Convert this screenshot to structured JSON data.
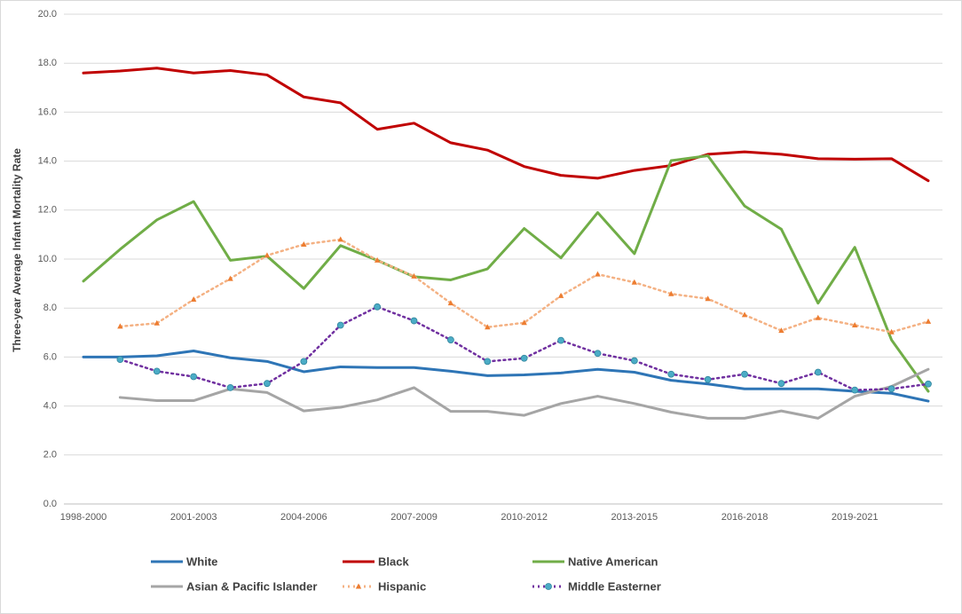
{
  "chart_data": {
    "type": "line",
    "y_label": "Three-year Average Infant Mortality Rate",
    "categories": [
      "1998-2000",
      null,
      null,
      "2001-2003",
      null,
      null,
      "2004-2006",
      null,
      null,
      "2007-2009",
      null,
      null,
      "2010-2012",
      null,
      null,
      "2013-2015",
      null,
      null,
      "2016-2018",
      null,
      null,
      "2019-2021",
      null,
      null
    ],
    "ylim": [
      0,
      20
    ],
    "yticks": [
      {
        "value": 0,
        "label": "0.0"
      },
      {
        "value": 2,
        "label": "2.0"
      },
      {
        "value": 4,
        "label": "4.0"
      },
      {
        "value": 6,
        "label": "6.0"
      },
      {
        "value": 8,
        "label": "8.0"
      },
      {
        "value": 10,
        "label": "10.0"
      },
      {
        "value": 12,
        "label": "12.0"
      },
      {
        "value": 14,
        "label": "14.0"
      },
      {
        "value": 16,
        "label": "16.0"
      },
      {
        "value": 18,
        "label": "18.0"
      },
      {
        "value": 20,
        "label": "20.0"
      }
    ],
    "grid": true,
    "legend": "bottom",
    "series": [
      {
        "name": "White",
        "color": "#2e75b6",
        "style": "solid",
        "values": [
          6.0,
          6.0,
          6.05,
          6.25,
          5.97,
          5.82,
          5.4,
          5.6,
          5.57,
          5.57,
          5.42,
          5.24,
          5.27,
          5.35,
          5.5,
          5.38,
          5.05,
          4.9,
          4.7,
          4.7,
          4.7,
          4.6,
          4.52,
          4.2
        ]
      },
      {
        "name": "Black",
        "color": "#c00000",
        "style": "solid",
        "values": [
          17.6,
          17.68,
          17.8,
          17.6,
          17.7,
          17.52,
          16.62,
          16.38,
          15.3,
          15.55,
          14.75,
          14.45,
          13.78,
          13.42,
          13.3,
          13.62,
          13.82,
          14.28,
          14.38,
          14.28,
          14.1,
          14.08,
          14.1,
          13.2
        ]
      },
      {
        "name": "Native American",
        "color": "#70ad47",
        "style": "solid",
        "values": [
          9.1,
          10.4,
          11.6,
          12.35,
          9.95,
          10.12,
          8.8,
          10.55,
          9.95,
          9.28,
          9.15,
          9.6,
          11.25,
          10.05,
          11.9,
          10.22,
          14.02,
          14.22,
          12.17,
          11.22,
          8.2,
          10.48,
          6.7,
          4.6
        ]
      },
      {
        "name": "Asian & Pacific Islander",
        "color": "#a5a5a5",
        "style": "solid",
        "values": [
          null,
          4.35,
          4.22,
          4.22,
          4.7,
          4.55,
          3.8,
          3.95,
          4.25,
          4.75,
          3.78,
          3.78,
          3.62,
          4.1,
          4.4,
          4.1,
          3.75,
          3.5,
          3.5,
          3.8,
          3.5,
          4.4,
          4.8,
          5.5
        ]
      },
      {
        "name": "Hispanic",
        "color": "#f4b183",
        "style": "dotted",
        "marker": "triangle",
        "marker_color": "#ed7d31",
        "values": [
          null,
          7.25,
          7.38,
          8.35,
          9.2,
          10.15,
          10.6,
          10.8,
          9.95,
          9.3,
          8.2,
          7.22,
          7.4,
          8.5,
          9.38,
          9.05,
          8.58,
          8.38,
          7.72,
          7.08,
          7.6,
          7.3,
          7.02,
          7.45
        ]
      },
      {
        "name": "Middle Easterner",
        "color": "#7030a0",
        "style": "dotted",
        "marker": "circle",
        "marker_color": "#4bacc6",
        "values": [
          null,
          5.9,
          5.42,
          5.2,
          4.75,
          4.92,
          5.82,
          7.3,
          8.05,
          7.48,
          6.7,
          5.82,
          5.95,
          6.68,
          6.15,
          5.85,
          5.3,
          5.08,
          5.3,
          4.92,
          5.38,
          4.65,
          4.7,
          4.9
        ]
      }
    ]
  }
}
